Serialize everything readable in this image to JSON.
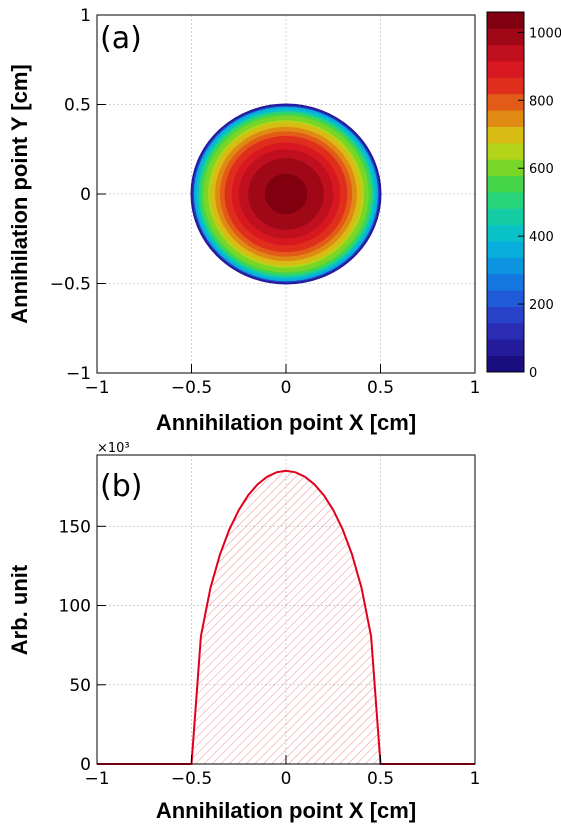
{
  "chart_data": [
    {
      "type": "heatmap",
      "panel_label": "(a)",
      "xlabel": "Annihilation point X [cm]",
      "ylabel": "Annihilation point Y [cm]",
      "xlim": [
        -1,
        1
      ],
      "ylim": [
        -1,
        1
      ],
      "x_ticks": [
        {
          "value": -1,
          "label": "−1"
        },
        {
          "value": -0.5,
          "label": "−0.5"
        },
        {
          "value": 0,
          "label": "0"
        },
        {
          "value": 0.5,
          "label": "0.5"
        },
        {
          "value": 1,
          "label": "1"
        }
      ],
      "y_ticks": [
        {
          "value": -1,
          "label": "−1"
        },
        {
          "value": -0.5,
          "label": "−0.5"
        },
        {
          "value": 0,
          "label": "0"
        },
        {
          "value": 0.5,
          "label": "0.5"
        },
        {
          "value": 1,
          "label": "1"
        }
      ],
      "grid": true,
      "distribution": {
        "shape": "disk",
        "center": [
          0,
          0
        ],
        "radius": 0.5,
        "peak": 1040,
        "edge": 150
      },
      "colorbar": {
        "min": 0,
        "max": 1060,
        "ticks": [
          {
            "value": 0,
            "label": "0"
          },
          {
            "value": 200,
            "label": "200"
          },
          {
            "value": 400,
            "label": "400"
          },
          {
            "value": 600,
            "label": "600"
          },
          {
            "value": 800,
            "label": "800"
          },
          {
            "value": 1000,
            "label": "1000"
          }
        ],
        "colors": [
          "#1a0d80",
          "#241b9a",
          "#2a2db4",
          "#2742c8",
          "#1f5bd8",
          "#1577e0",
          "#0d94e0",
          "#07aedc",
          "#08c2c8",
          "#14cca4",
          "#28d47a",
          "#45d64a",
          "#7ad626",
          "#b4d41a",
          "#d8bc14",
          "#e08a14",
          "#e25c18",
          "#e02e1c",
          "#d81820",
          "#c01020",
          "#a00818",
          "#800010"
        ]
      }
    },
    {
      "type": "area",
      "panel_label": "(b)",
      "xlabel": "Annihilation point X [cm]",
      "ylabel": "Arb. unit",
      "y_multiplier": "×10³",
      "xlim": [
        -1,
        1
      ],
      "ylim": [
        0,
        195
      ],
      "x_ticks": [
        {
          "value": -1,
          "label": "−1"
        },
        {
          "value": -0.5,
          "label": "−0.5"
        },
        {
          "value": 0,
          "label": "0"
        },
        {
          "value": 0.5,
          "label": "0.5"
        },
        {
          "value": 1,
          "label": "1"
        }
      ],
      "y_ticks": [
        {
          "value": 0,
          "label": "0"
        },
        {
          "value": 50,
          "label": "50"
        },
        {
          "value": 100,
          "label": "100"
        },
        {
          "value": 150,
          "label": "150"
        }
      ],
      "grid": true,
      "line_color": "#e0001c",
      "x": [
        -1.0,
        -0.9,
        -0.8,
        -0.7,
        -0.6,
        -0.5,
        -0.45,
        -0.4,
        -0.35,
        -0.3,
        -0.25,
        -0.2,
        -0.15,
        -0.1,
        -0.05,
        0.0,
        0.05,
        0.1,
        0.15,
        0.2,
        0.25,
        0.3,
        0.35,
        0.4,
        0.45,
        0.5,
        0.6,
        0.7,
        0.8,
        0.9,
        1.0
      ],
      "y": [
        0,
        0,
        0,
        0,
        0,
        0,
        80.6,
        111.0,
        132.1,
        148.0,
        160.2,
        169.6,
        176.5,
        181.3,
        184.1,
        185.0,
        184.1,
        181.3,
        176.5,
        169.6,
        160.2,
        148.0,
        132.1,
        111.0,
        80.6,
        0,
        0,
        0,
        0,
        0,
        0
      ]
    }
  ]
}
